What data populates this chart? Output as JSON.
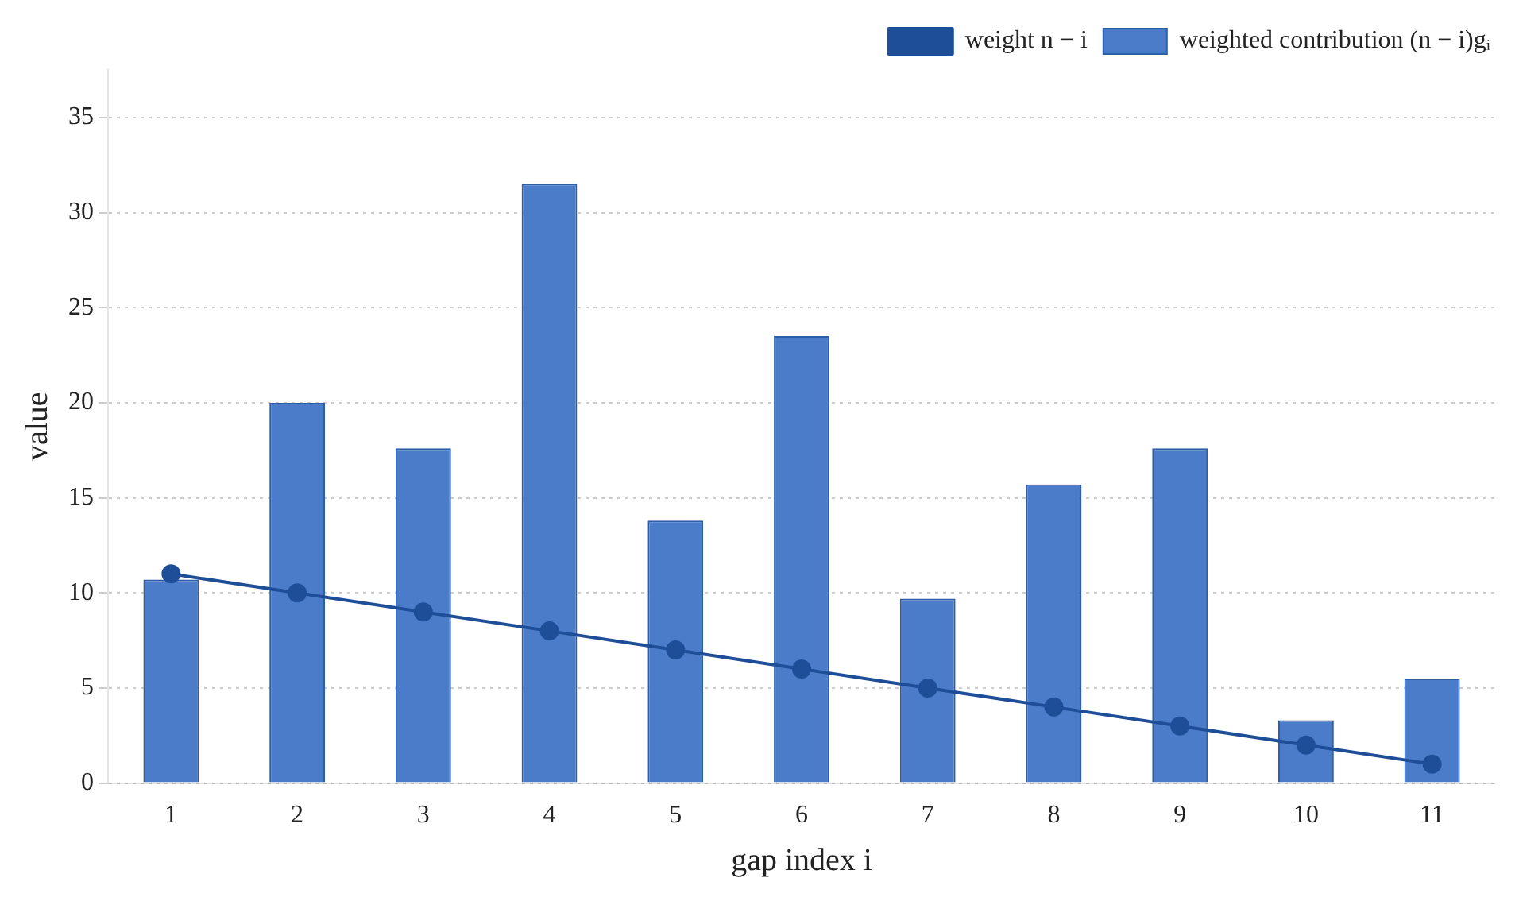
{
  "chart_data": {
    "type": "bar",
    "xlabel": "gap index i",
    "ylabel": "value",
    "categories": [
      "1",
      "2",
      "3",
      "4",
      "5",
      "6",
      "7",
      "8",
      "9",
      "10",
      "11"
    ],
    "series": [
      {
        "name": "weight n − i",
        "type": "line",
        "color": "#1f4e99",
        "values": [
          11,
          10,
          9,
          8,
          7,
          6,
          5,
          4,
          3,
          2,
          1
        ]
      },
      {
        "name": "weighted contribution (n − i)gᵢ",
        "color": "#4a7cc9",
        "values": [
          10.7,
          20,
          17.6,
          31.5,
          13.8,
          23.5,
          9.7,
          15.7,
          17.6,
          3.3,
          5.5
        ]
      }
    ],
    "ylim": [
      0,
      37.5
    ],
    "yticks": [
      0,
      5,
      10,
      15,
      20,
      25,
      30,
      35
    ],
    "grid": "y",
    "legend": "top right",
    "marker": "circle"
  }
}
